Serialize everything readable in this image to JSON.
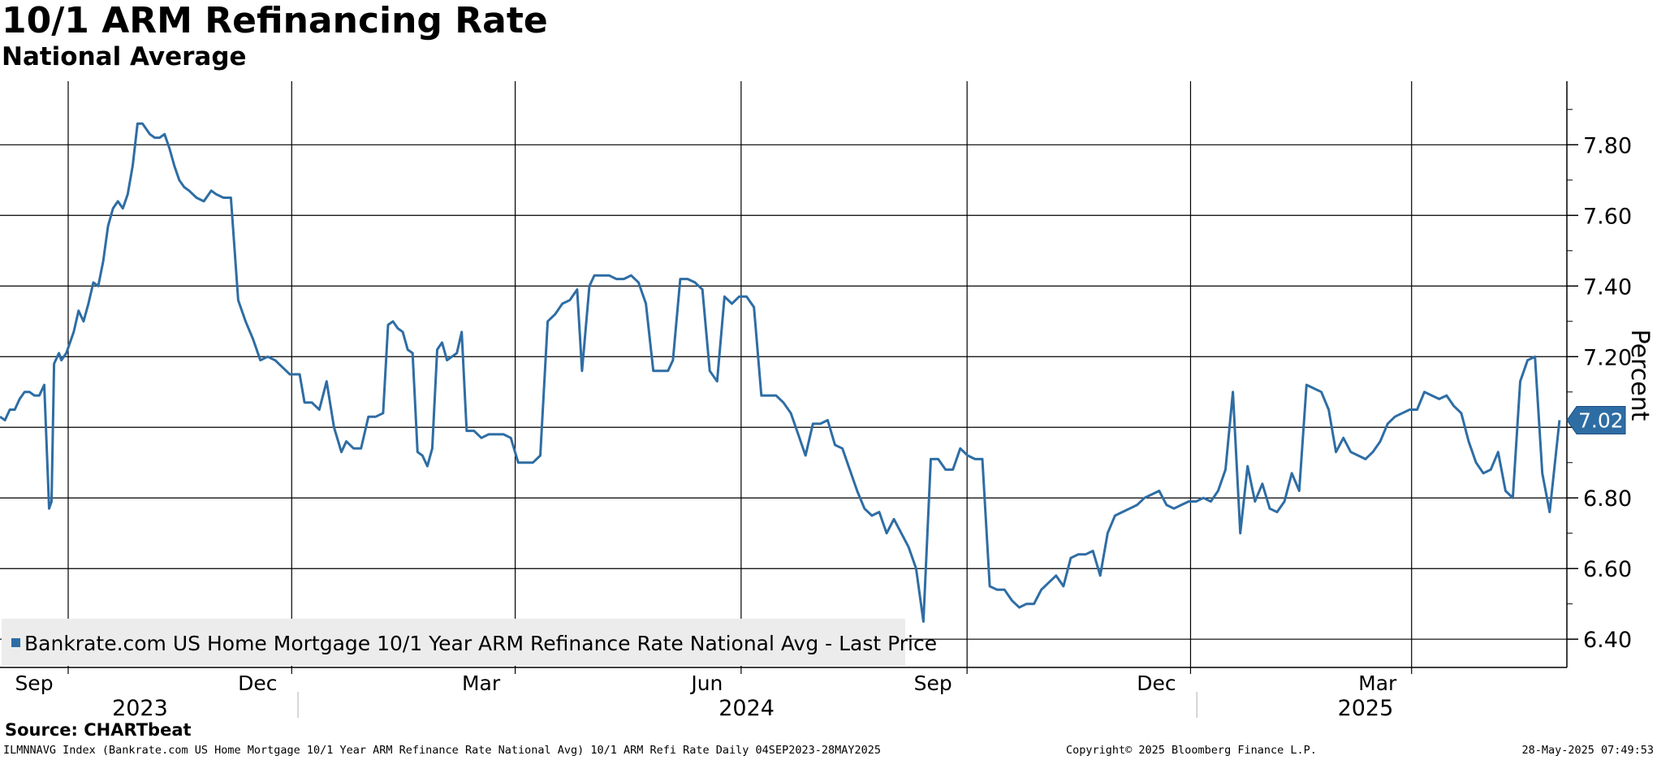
{
  "title": "10/1 ARM Refinancing Rate",
  "subtitle": "National Average",
  "source": "Source: CHARTbeat",
  "footer": {
    "left": "ILMNNAVG Index (Bankrate.com US Home Mortgage 10/1 Year ARM Refinance Rate National Avg) 10/1 ARM Refi Rate  Daily 04SEP2023-28MAY2025",
    "middle": "Copyright© 2025 Bloomberg Finance L.P.",
    "right": "28-May-2025 07:49:53"
  },
  "colors": {
    "series": "#2e6da4",
    "grid": "#000000",
    "legend_bg": "#ececec"
  },
  "chart_data": {
    "type": "line",
    "title": "10/1 ARM Refinancing Rate",
    "subtitle": "National Average",
    "ylabel": "Percent",
    "ylim": [
      6.32,
      7.98
    ],
    "yticks": [
      6.4,
      6.6,
      6.8,
      7.0,
      7.2,
      7.4,
      7.6,
      7.8
    ],
    "ytick_labels": [
      "6.40",
      "6.60",
      "6.80",
      "",
      "7.20",
      "7.40",
      "7.60",
      "7.80"
    ],
    "xlim": [
      "2023-09-01",
      "2025-05-31"
    ],
    "x_ticks": [
      {
        "date": "2023-09-01",
        "label": "Sep"
      },
      {
        "date": "2023-12-01",
        "label": "Dec"
      },
      {
        "date": "2024-03-01",
        "label": "Mar"
      },
      {
        "date": "2024-06-01",
        "label": "Jun"
      },
      {
        "date": "2024-09-01",
        "label": "Sep"
      },
      {
        "date": "2024-12-01",
        "label": "Dec"
      },
      {
        "date": "2025-03-01",
        "label": "Mar"
      }
    ],
    "year_labels": [
      {
        "label": "2023",
        "center": "2023-10-28"
      },
      {
        "label": "2024",
        "center": "2024-07-01"
      },
      {
        "label": "2025",
        "center": "2025-03-10"
      }
    ],
    "year_boundaries": [
      "2024-01-01",
      "2025-01-01"
    ],
    "grid": true,
    "legend": {
      "position": "bottom-left",
      "entries": [
        "Bankrate.com US Home Mortgage 10/1 Year ARM Refinance Rate National Avg - Last Price"
      ]
    },
    "last_value": {
      "label": "7.02",
      "value": 7.02
    },
    "series": [
      {
        "name": "Bankrate.com US Home Mortgage 10/1 Year ARM Refinance Rate National Avg - Last Price",
        "x": [
          "2023-09-01",
          "2023-09-03",
          "2023-09-05",
          "2023-09-07",
          "2023-09-09",
          "2023-09-11",
          "2023-09-13",
          "2023-09-15",
          "2023-09-17",
          "2023-09-19",
          "2023-09-21",
          "2023-09-22",
          "2023-09-23",
          "2023-09-25",
          "2023-09-26",
          "2023-09-28",
          "2023-10-01",
          "2023-10-03",
          "2023-10-05",
          "2023-10-07",
          "2023-10-09",
          "2023-10-11",
          "2023-10-13",
          "2023-10-15",
          "2023-10-17",
          "2023-10-19",
          "2023-10-21",
          "2023-10-23",
          "2023-10-25",
          "2023-10-27",
          "2023-10-29",
          "2023-11-01",
          "2023-11-03",
          "2023-11-05",
          "2023-11-07",
          "2023-11-09",
          "2023-11-11",
          "2023-11-13",
          "2023-11-15",
          "2023-11-17",
          "2023-11-20",
          "2023-11-23",
          "2023-11-26",
          "2023-11-28",
          "2023-12-01",
          "2023-12-04",
          "2023-12-07",
          "2023-12-10",
          "2023-12-13",
          "2023-12-16",
          "2023-12-19",
          "2023-12-22",
          "2023-12-25",
          "2023-12-28",
          "2024-01-01",
          "2024-01-03",
          "2024-01-06",
          "2024-01-09",
          "2024-01-12",
          "2024-01-15",
          "2024-01-18",
          "2024-01-20",
          "2024-01-23",
          "2024-01-26",
          "2024-01-29",
          "2024-02-01",
          "2024-02-04",
          "2024-02-06",
          "2024-02-08",
          "2024-02-10",
          "2024-02-12",
          "2024-02-14",
          "2024-02-16",
          "2024-02-18",
          "2024-02-20",
          "2024-02-22",
          "2024-02-24",
          "2024-02-26",
          "2024-02-28",
          "2024-03-01",
          "2024-03-03",
          "2024-03-05",
          "2024-03-07",
          "2024-03-09",
          "2024-03-12",
          "2024-03-15",
          "2024-03-18",
          "2024-03-21",
          "2024-03-24",
          "2024-03-27",
          "2024-03-30",
          "2024-04-02",
          "2024-04-05",
          "2024-04-08",
          "2024-04-11",
          "2024-04-14",
          "2024-04-17",
          "2024-04-20",
          "2024-04-23",
          "2024-04-25",
          "2024-04-28",
          "2024-04-30",
          "2024-05-03",
          "2024-05-06",
          "2024-05-09",
          "2024-05-12",
          "2024-05-15",
          "2024-05-18",
          "2024-05-21",
          "2024-05-24",
          "2024-05-27",
          "2024-05-30",
          "2024-06-01",
          "2024-06-04",
          "2024-06-07",
          "2024-06-10",
          "2024-06-13",
          "2024-06-16",
          "2024-06-19",
          "2024-06-22",
          "2024-06-25",
          "2024-06-28",
          "2024-07-01",
          "2024-07-04",
          "2024-07-07",
          "2024-07-10",
          "2024-07-13",
          "2024-07-16",
          "2024-07-19",
          "2024-07-22",
          "2024-07-25",
          "2024-07-28",
          "2024-07-31",
          "2024-08-03",
          "2024-08-06",
          "2024-08-09",
          "2024-08-12",
          "2024-08-15",
          "2024-08-18",
          "2024-08-21",
          "2024-08-24",
          "2024-08-27",
          "2024-08-30",
          "2024-09-02",
          "2024-09-05",
          "2024-09-08",
          "2024-09-11",
          "2024-09-14",
          "2024-09-17",
          "2024-09-20",
          "2024-09-23",
          "2024-09-26",
          "2024-09-29",
          "2024-10-02",
          "2024-10-05",
          "2024-10-08",
          "2024-10-11",
          "2024-10-14",
          "2024-10-17",
          "2024-10-20",
          "2024-10-23",
          "2024-10-26",
          "2024-10-29",
          "2024-11-01",
          "2024-11-04",
          "2024-11-07",
          "2024-11-10",
          "2024-11-13",
          "2024-11-16",
          "2024-11-19",
          "2024-11-22",
          "2024-11-25",
          "2024-11-28",
          "2024-12-01",
          "2024-12-04",
          "2024-12-07",
          "2024-12-10",
          "2024-12-13",
          "2024-12-16",
          "2024-12-19",
          "2024-12-22",
          "2024-12-25",
          "2024-12-28",
          "2024-12-31",
          "2025-01-03",
          "2025-01-06",
          "2025-01-09",
          "2025-01-12",
          "2025-01-15",
          "2025-01-18",
          "2025-01-21",
          "2025-01-24",
          "2025-01-27",
          "2025-01-30",
          "2025-02-02",
          "2025-02-05",
          "2025-02-08",
          "2025-02-11",
          "2025-02-14",
          "2025-02-17",
          "2025-02-20",
          "2025-02-23",
          "2025-02-26",
          "2025-03-01",
          "2025-03-04",
          "2025-03-07",
          "2025-03-10",
          "2025-03-13",
          "2025-03-16",
          "2025-03-19",
          "2025-03-22",
          "2025-03-25",
          "2025-03-28",
          "2025-03-31",
          "2025-04-03",
          "2025-04-06",
          "2025-04-09",
          "2025-04-12",
          "2025-04-15",
          "2025-04-18",
          "2025-04-21",
          "2025-04-24",
          "2025-04-27",
          "2025-04-30",
          "2025-05-03",
          "2025-05-06",
          "2025-05-09",
          "2025-05-12",
          "2025-05-15",
          "2025-05-18",
          "2025-05-21",
          "2025-05-24",
          "2025-05-28"
        ],
        "values": [
          7.03,
          7.02,
          7.05,
          7.05,
          7.08,
          7.1,
          7.1,
          7.09,
          7.09,
          7.12,
          6.77,
          6.79,
          7.18,
          7.21,
          7.19,
          7.21,
          7.27,
          7.33,
          7.3,
          7.35,
          7.41,
          7.4,
          7.47,
          7.57,
          7.62,
          7.64,
          7.62,
          7.66,
          7.74,
          7.86,
          7.86,
          7.83,
          7.82,
          7.82,
          7.83,
          7.79,
          7.74,
          7.7,
          7.68,
          7.67,
          7.65,
          7.64,
          7.67,
          7.66,
          7.65,
          7.65,
          7.36,
          7.3,
          7.25,
          7.19,
          7.2,
          7.19,
          7.17,
          7.15,
          7.15,
          7.07,
          7.07,
          7.05,
          7.13,
          7.0,
          6.93,
          6.96,
          6.94,
          6.94,
          7.03,
          7.03,
          7.04,
          7.29,
          7.3,
          7.28,
          7.27,
          7.22,
          7.21,
          6.93,
          6.92,
          6.89,
          6.94,
          7.22,
          7.24,
          7.19,
          7.2,
          7.21,
          7.27,
          6.99,
          6.99,
          6.97,
          6.98,
          6.98,
          6.98,
          6.97,
          6.9,
          6.9,
          6.9,
          6.92,
          7.3,
          7.32,
          7.35,
          7.36,
          7.39,
          7.16,
          7.4,
          7.43,
          7.43,
          7.43,
          7.42,
          7.42,
          7.43,
          7.41,
          7.35,
          7.16,
          7.16,
          7.16,
          7.19,
          7.42,
          7.42,
          7.41,
          7.39,
          7.16,
          7.13,
          7.37,
          7.35,
          7.37,
          7.37,
          7.34,
          7.09,
          7.09,
          7.09,
          7.07,
          7.04,
          6.98,
          6.92,
          7.01,
          7.01,
          7.02,
          6.95,
          6.94,
          6.88,
          6.82,
          6.77,
          6.75,
          6.76,
          6.7,
          6.74,
          6.7,
          6.66,
          6.6,
          6.45,
          6.91,
          6.91,
          6.88,
          6.88,
          6.94,
          6.92,
          6.91,
          6.91,
          6.55,
          6.54,
          6.54,
          6.51,
          6.49,
          6.5,
          6.5,
          6.54,
          6.56,
          6.58,
          6.55,
          6.63,
          6.64,
          6.64,
          6.65,
          6.58,
          6.7,
          6.75,
          6.76,
          6.77,
          6.78,
          6.8,
          6.81,
          6.82,
          6.78,
          6.77,
          6.78,
          6.79,
          6.79,
          6.8,
          6.79,
          6.82,
          6.88,
          7.1,
          6.7,
          6.89,
          6.79,
          6.84,
          6.77,
          6.76,
          6.79,
          6.87,
          6.82,
          7.12,
          7.11,
          7.1,
          7.05,
          6.93,
          6.97,
          6.93,
          6.92,
          6.91,
          6.93,
          6.96,
          7.01,
          7.03,
          7.04,
          7.05,
          7.05,
          7.1,
          7.09,
          7.08,
          7.09,
          7.06,
          7.04,
          6.96,
          6.9,
          6.87,
          6.88,
          6.93,
          6.82,
          6.8,
          7.13,
          7.19,
          7.2,
          6.87,
          6.76,
          7.02
        ]
      }
    ]
  }
}
